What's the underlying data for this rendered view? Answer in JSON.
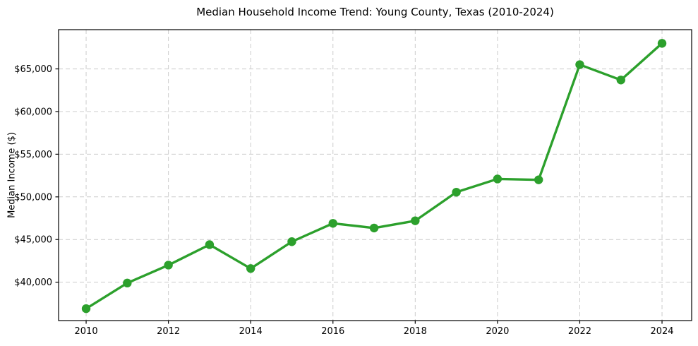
{
  "chart_data": {
    "type": "line",
    "title": "Median Household Income Trend: Young County, Texas (2010-2024)",
    "xlabel": "",
    "ylabel": "Median Income ($)",
    "series": [
      {
        "name": "Median Household Income",
        "x": [
          2010,
          2011,
          2012,
          2013,
          2014,
          2015,
          2016,
          2017,
          2018,
          2019,
          2020,
          2021,
          2022,
          2023,
          2024
        ],
        "values": [
          36900,
          39900,
          42000,
          44400,
          41600,
          44750,
          46900,
          46350,
          47200,
          50550,
          52100,
          52000,
          65500,
          63700,
          68000
        ]
      }
    ],
    "xlim": [
      2009.33,
      2024.72
    ],
    "ylim": [
      35500,
      69600
    ],
    "xticks": [
      2010,
      2012,
      2014,
      2016,
      2018,
      2020,
      2022,
      2024
    ],
    "xtick_labels": [
      "2010",
      "2012",
      "2014",
      "2016",
      "2018",
      "2020",
      "2022",
      "2024"
    ],
    "yticks": [
      40000,
      45000,
      50000,
      55000,
      60000,
      65000
    ],
    "ytick_labels": [
      "$40,000",
      "$45,000",
      "$50,000",
      "$55,000",
      "$60,000",
      "$65,000"
    ],
    "grid": true,
    "legend_position": "none",
    "marker": "circle"
  },
  "colors": {
    "line": "#2ca02c",
    "grid": "#cccccc",
    "axis": "#000000",
    "text": "#000000",
    "background": "#ffffff"
  }
}
